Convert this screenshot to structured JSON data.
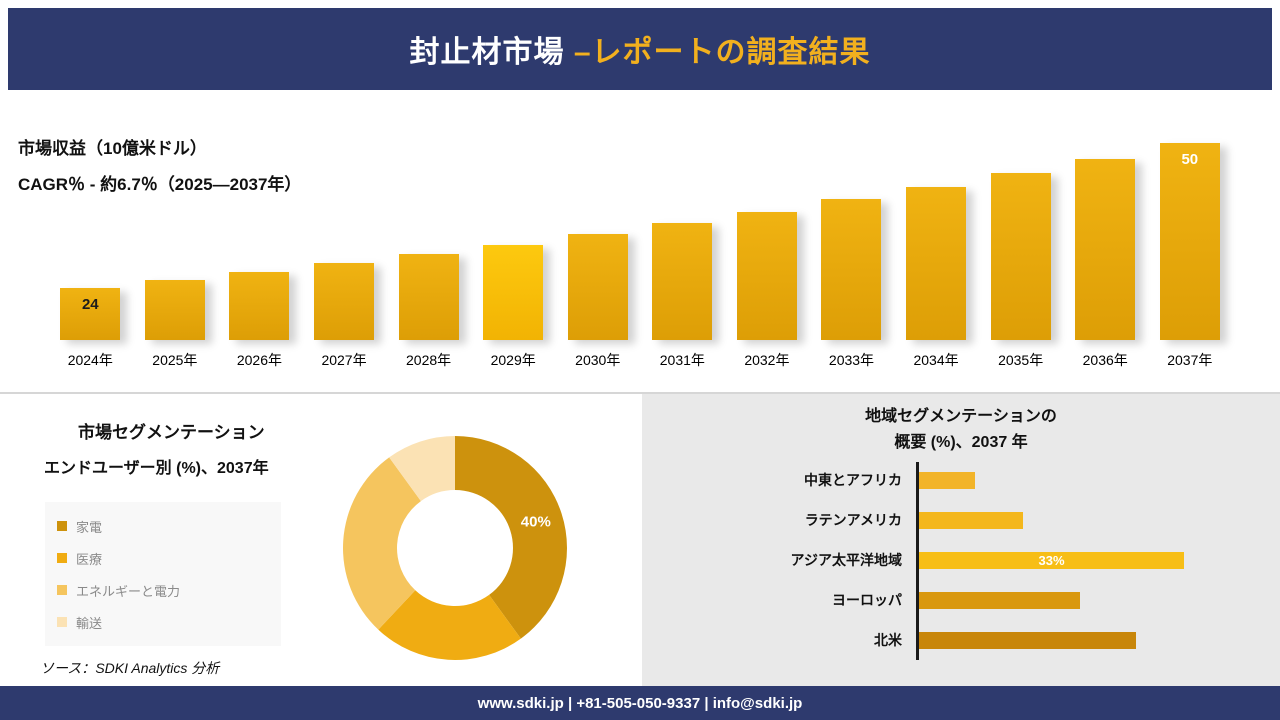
{
  "colors": {
    "navy": "#2e3a6e",
    "gold_accent": "#f2b01e",
    "panel_gray": "#e9e9e9"
  },
  "header": {
    "title_main": "封止材市場",
    "title_accent": " –レポートの調査結果"
  },
  "revenue": {
    "title": "市場収益（10億米ドル）",
    "cagr": "CAGR％ - 約6.7％（2025―2037年）"
  },
  "segmentation": {
    "title": "市場セグメンテーション",
    "subtitle": "エンドユーザー別 (%)、2037年"
  },
  "region": {
    "title_line1": "地域セグメンテーションの",
    "title_line2": "概要 (%)、2037 年"
  },
  "source": {
    "prefix": "ソース：",
    "text": "SDKI Analytics 分析"
  },
  "footer": {
    "text": "www.sdki.jp | +81-505-050-9337 | info@sdki.jp"
  },
  "chart_data": [
    {
      "id": "market-revenue",
      "type": "bar",
      "title": "市場収益（10億米ドル）",
      "subtitle": "CAGR％ - 約6.7％（2025―2037年）",
      "categories": [
        "2024年",
        "2025年",
        "2026年",
        "2027年",
        "2028年",
        "2029年",
        "2030年",
        "2031年",
        "2032年",
        "2033年",
        "2034年",
        "2035年",
        "2036年",
        "2037年"
      ],
      "values": [
        24,
        25.4,
        26.9,
        28.4,
        30.1,
        31.8,
        33.7,
        35.6,
        37.7,
        39.9,
        42.2,
        44.6,
        47.2,
        50
      ],
      "value_labels": [
        "24",
        "",
        "",
        "",
        "",
        "",
        "",
        "",
        "",
        "",
        "",
        "",
        "",
        "50"
      ],
      "label_styles": [
        "dark",
        "",
        "",
        "",
        "",
        "",
        "",
        "",
        "",
        "",
        "",
        "",
        "",
        "light"
      ],
      "ylim": [
        0,
        55
      ],
      "grid": false,
      "bright_index": 5,
      "bar_gradient": [
        "#f0b312",
        "#dd9e06"
      ],
      "bright_gradient": [
        "#fdc90f",
        "#f2b303"
      ]
    },
    {
      "id": "end-user-segmentation",
      "type": "pie",
      "donut": true,
      "title": "市場セグメンテーション",
      "subtitle": "エンドユーザー別 (%)、2037年",
      "legend_position": "left",
      "segments": [
        {
          "label": "家電",
          "value": 40,
          "color": "#cd920d",
          "pct_label": "40%"
        },
        {
          "label": "医療",
          "value": 22,
          "color": "#f0ac12",
          "pct_label": ""
        },
        {
          "label": "エネルギーと電力",
          "value": 28,
          "color": "#f5c55e",
          "pct_label": ""
        },
        {
          "label": "輸送",
          "value": 10,
          "color": "#fbe2b4",
          "pct_label": ""
        }
      ]
    },
    {
      "id": "regional-segmentation",
      "type": "bar",
      "orientation": "horizontal",
      "title": "地域セグメンテーションの概要 (%)、2037 年",
      "categories": [
        "中東とアフリカ",
        "ラテンアメリカ",
        "アジア太平洋地域",
        "ヨーロッパ",
        "北米"
      ],
      "values": [
        7,
        13,
        33,
        20,
        27
      ],
      "value_labels": [
        "",
        "",
        "33%",
        "",
        ""
      ],
      "colors": [
        "#f2b429",
        "#f4b71c",
        "#f7be16",
        "#d9980f",
        "#c8860a"
      ],
      "xlim": [
        0,
        35
      ],
      "grid": false
    }
  ]
}
